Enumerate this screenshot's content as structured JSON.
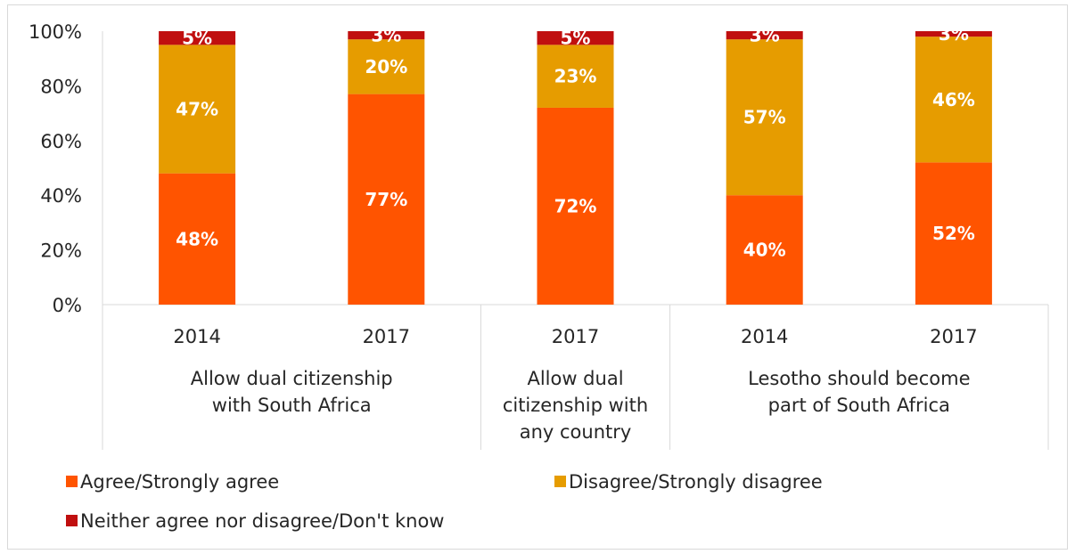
{
  "chart_data": {
    "type": "bar",
    "stacked": true,
    "groups": [
      {
        "label_lines": [
          "Allow dual citizenship",
          "with South Africa"
        ],
        "categories": [
          "2014",
          "2017"
        ]
      },
      {
        "label_lines": [
          "Allow dual",
          "citizenship with",
          "any country"
        ],
        "categories": [
          "2017"
        ]
      },
      {
        "label_lines": [
          "Lesotho should become",
          "part of South Africa"
        ],
        "categories": [
          "2014",
          "2017"
        ]
      }
    ],
    "categories": [
      "2014",
      "2017",
      "2017",
      "2014",
      "2017"
    ],
    "series": [
      {
        "name": "Agree/Strongly agree",
        "color": "#ff5400",
        "values": [
          48,
          77,
          72,
          40,
          52
        ],
        "labels": [
          "48%",
          "77%",
          "72%",
          "40%",
          "52%"
        ]
      },
      {
        "name": "Disagree/Strongly disagree",
        "color": "#e69c00",
        "values": [
          47,
          20,
          23,
          57,
          46
        ],
        "labels": [
          "47%",
          "20%",
          "23%",
          "57%",
          "46%"
        ]
      },
      {
        "name": "Neither agree nor disagree/Don't know",
        "color": "#c00f0f",
        "values": [
          5,
          3,
          5,
          3,
          3
        ],
        "labels": [
          "5%",
          "3%",
          "5%",
          "3%",
          "3%"
        ]
      }
    ],
    "yticks": [
      "0%",
      "20%",
      "40%",
      "60%",
      "80%",
      "100%"
    ],
    "ylim": [
      0,
      100
    ],
    "grid": false,
    "legend_position": "bottom"
  }
}
